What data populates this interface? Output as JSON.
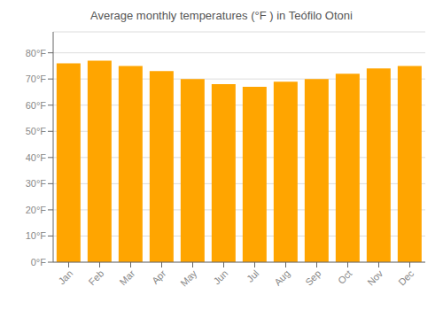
{
  "chart_data": {
    "type": "bar",
    "title": "Average monthly temperatures (°F ) in Teófilo Otoni",
    "categories": [
      "Jan",
      "Feb",
      "Mar",
      "Apr",
      "May",
      "Jun",
      "Jul",
      "Aug",
      "Sep",
      "Oct",
      "Nov",
      "Dec"
    ],
    "values": [
      76,
      77,
      75,
      73,
      70,
      68,
      67,
      69,
      70,
      72,
      74,
      75
    ],
    "color": "#FFA500",
    "ylim": [
      0,
      88
    ],
    "yticks": [
      {
        "value": 0,
        "label": "0°F"
      },
      {
        "value": 10,
        "label": "10°F"
      },
      {
        "value": 20,
        "label": "20°F"
      },
      {
        "value": 30,
        "label": "30°F"
      },
      {
        "value": 40,
        "label": "40°F"
      },
      {
        "value": 50,
        "label": "50°F"
      },
      {
        "value": 60,
        "label": "60°F"
      },
      {
        "value": 70,
        "label": "70°F"
      },
      {
        "value": 80,
        "label": "80°F"
      }
    ],
    "grid": true
  }
}
